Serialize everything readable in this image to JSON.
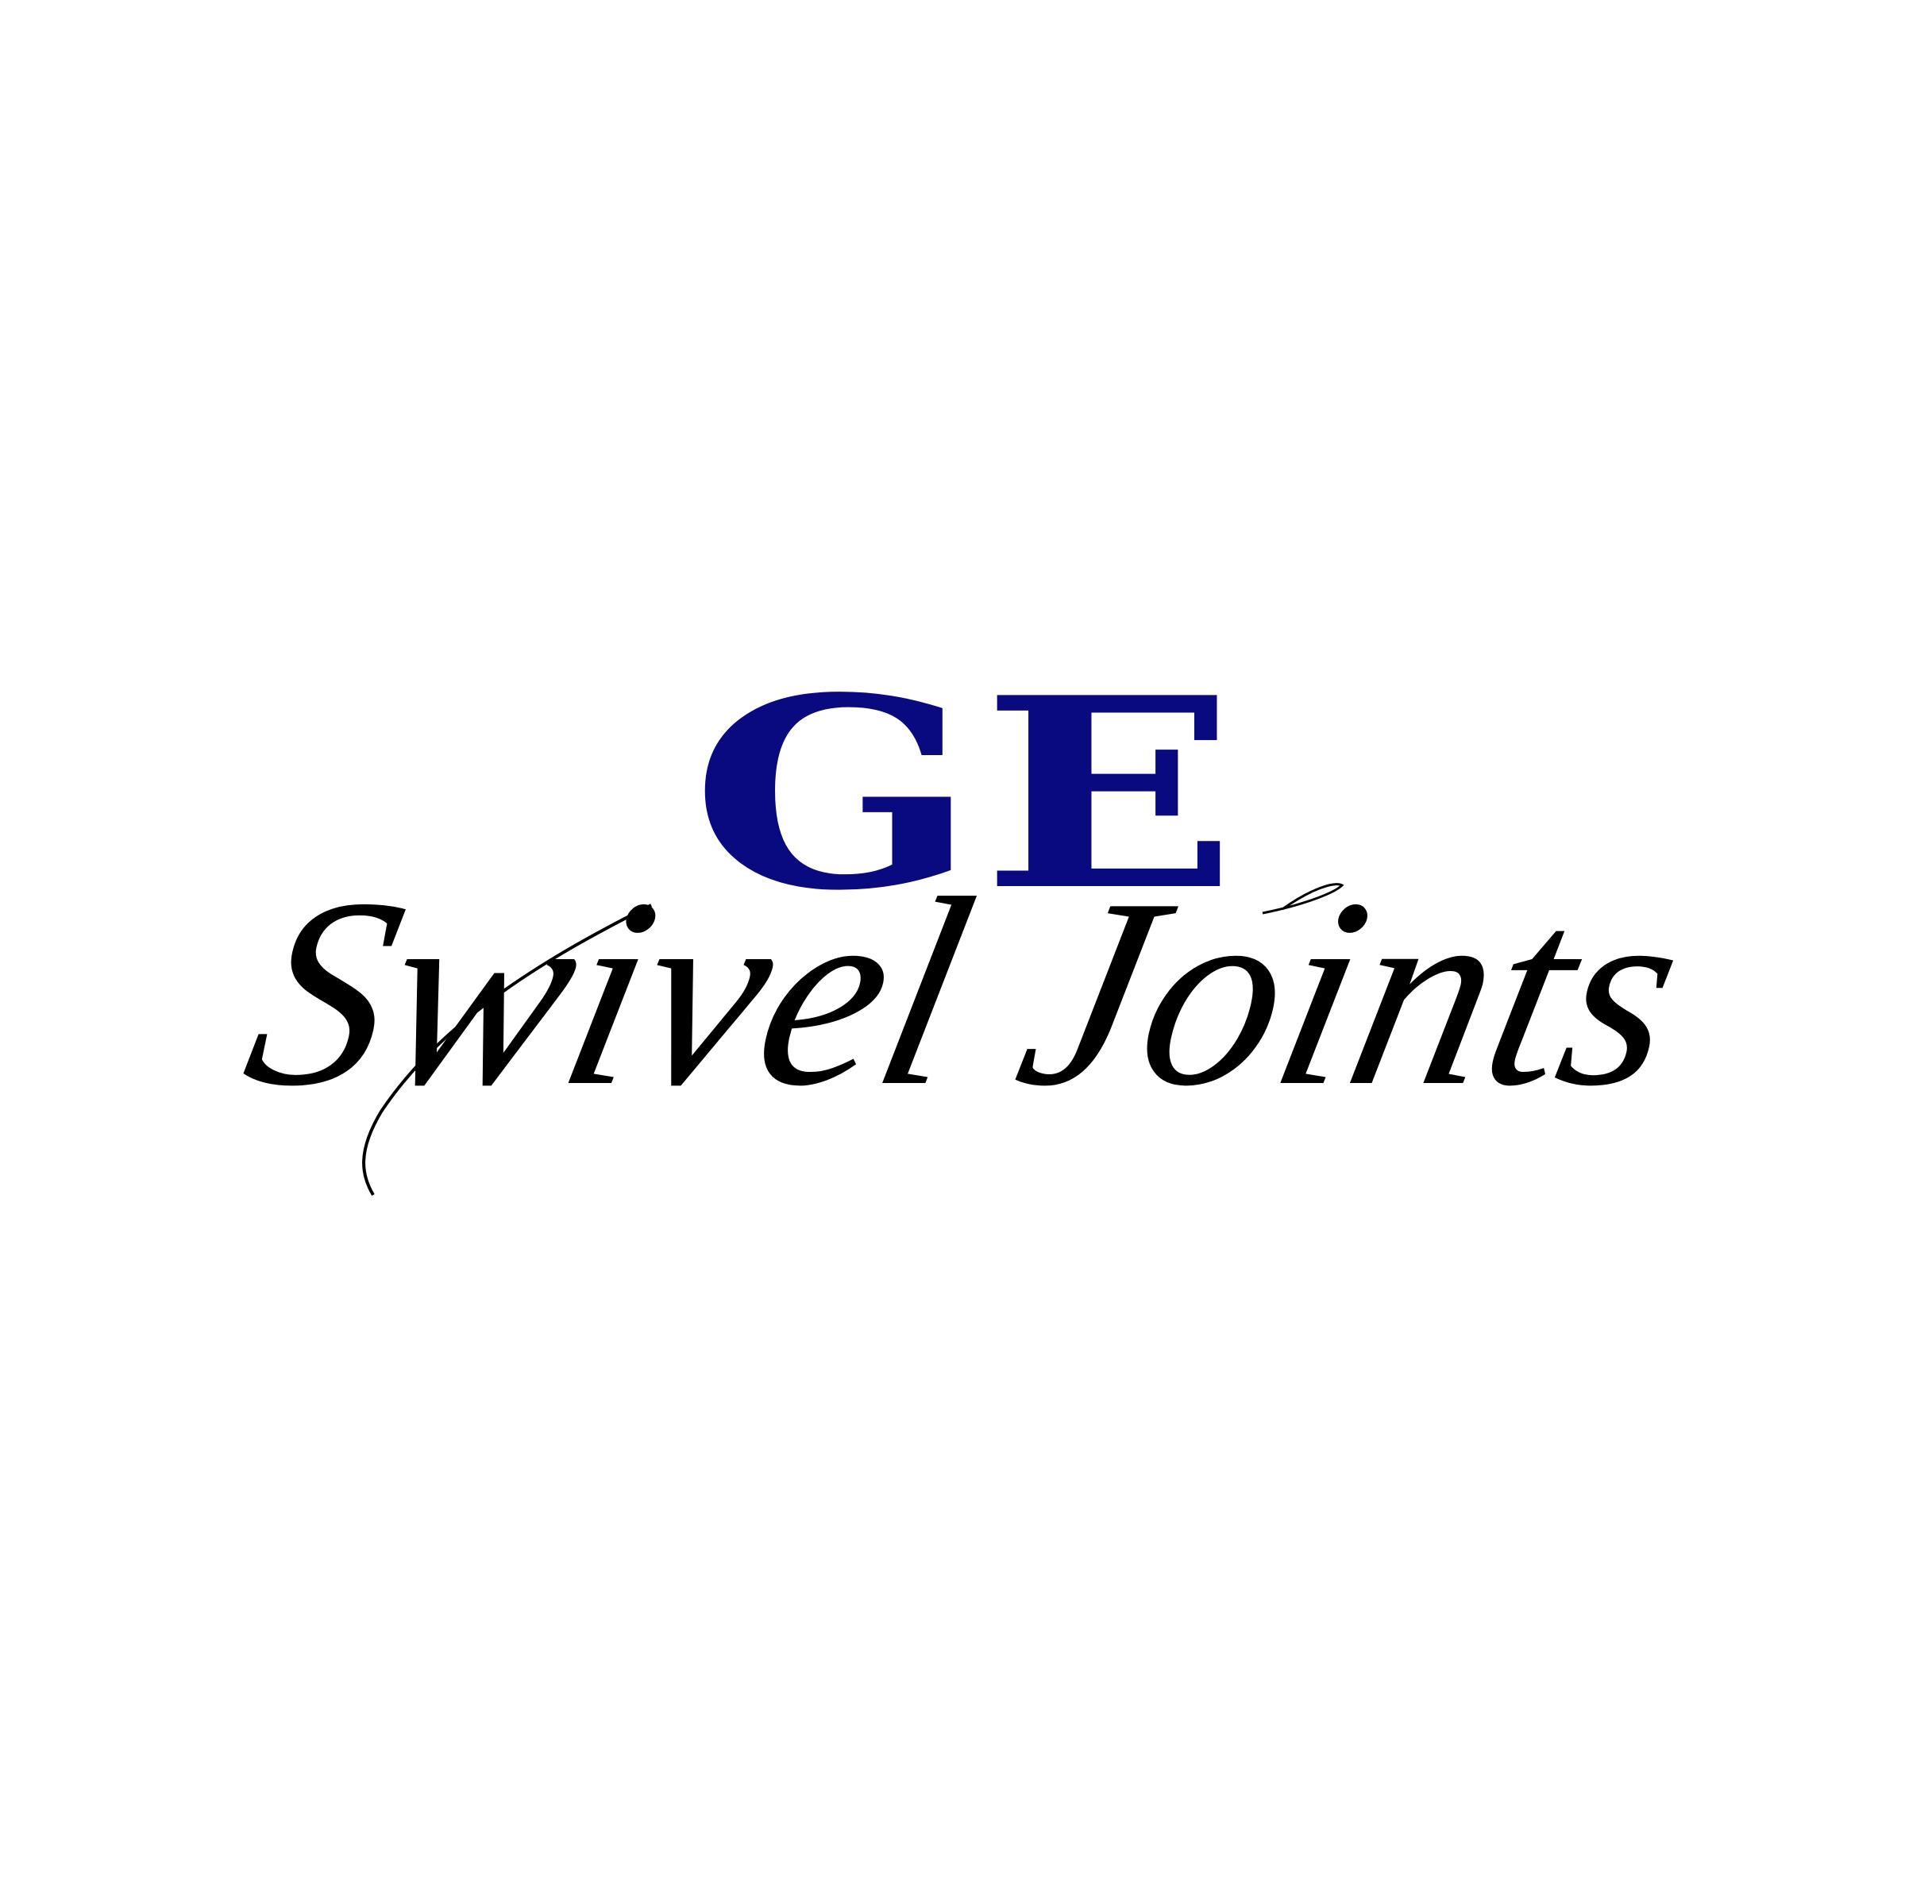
{
  "logo": {
    "top_text": "GE",
    "bottom_text": "Swivel Joints",
    "top_color": "#0a0a80",
    "bottom_color": "#000000",
    "background_color": "#ffffff"
  }
}
